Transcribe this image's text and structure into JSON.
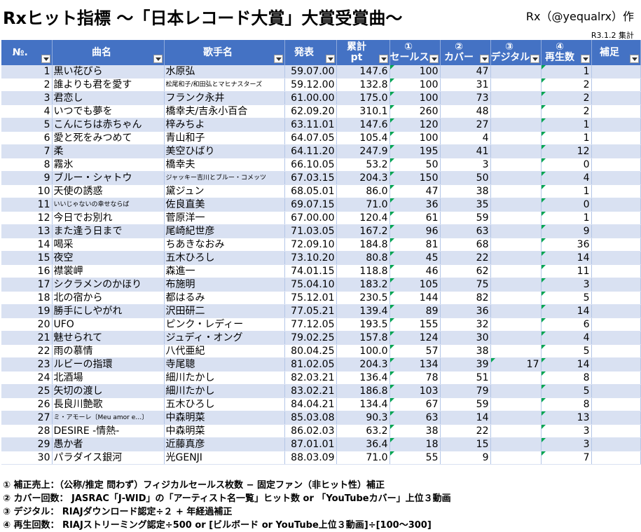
{
  "title": "Rxヒット指標 〜「日本レコード大賞」大賞受賞曲〜",
  "author": "Rx（@yequalrx）作",
  "date": "R3.1.2  集計",
  "headers": {
    "no": "№.",
    "song": "曲名",
    "artist": "歌手名",
    "release": "発表",
    "total_line1": "累計",
    "total_line2": "pt",
    "sales_line1": "①",
    "sales_line2": "セールス",
    "cover_line1": "②",
    "cover_line2": "カバー",
    "digital_line1": "③",
    "digital_line2": "デジタル",
    "plays_line1": "④",
    "plays_line2": "再生数",
    "note": "補足"
  },
  "rows": [
    {
      "no": "1",
      "song": "黒い花びら",
      "artist": "水原弘",
      "release": "59.07.00",
      "total": "147.6",
      "sales": "100",
      "cover": "47",
      "digital": "",
      "plays": "1"
    },
    {
      "no": "2",
      "song": "誰よりも君を愛す",
      "artist": "松尾和子/和田弘とマヒナスターズ",
      "release": "59.12.00",
      "total": "132.8",
      "sales": "100",
      "cover": "31",
      "digital": "",
      "plays": "2"
    },
    {
      "no": "3",
      "song": "君恋し",
      "artist": "フランク永井",
      "release": "61.00.00",
      "total": "175.0",
      "sales": "100",
      "cover": "73",
      "digital": "",
      "plays": "2"
    },
    {
      "no": "4",
      "song": "いつでも夢を",
      "artist": "橋幸夫/吉永小百合",
      "release": "62.09.20",
      "total": "310.1",
      "sales": "260",
      "cover": "48",
      "digital": "",
      "plays": "2"
    },
    {
      "no": "5",
      "song": "こんにちは赤ちゃん",
      "artist": "梓みちよ",
      "release": "63.11.01",
      "total": "147.6",
      "sales": "120",
      "cover": "27",
      "digital": "",
      "plays": "1"
    },
    {
      "no": "6",
      "song": "愛と死をみつめて",
      "artist": "青山和子",
      "release": "64.07.05",
      "total": "105.4",
      "sales": "100",
      "cover": "4",
      "digital": "",
      "plays": "1"
    },
    {
      "no": "7",
      "song": "柔",
      "artist": "美空ひばり",
      "release": "64.11.20",
      "total": "247.9",
      "sales": "195",
      "cover": "41",
      "digital": "",
      "plays": "12"
    },
    {
      "no": "8",
      "song": "霧氷",
      "artist": "橋幸夫",
      "release": "66.10.05",
      "total": "53.2",
      "sales": "50",
      "cover": "3",
      "digital": "",
      "plays": "0"
    },
    {
      "no": "9",
      "song": "ブルー・シャトウ",
      "artist": "ジャッキー吉川とブルー・コメッツ",
      "release": "67.03.15",
      "total": "204.3",
      "sales": "150",
      "cover": "50",
      "digital": "",
      "plays": "4"
    },
    {
      "no": "10",
      "song": "天使の誘惑",
      "artist": "黛ジュン",
      "release": "68.05.01",
      "total": "86.0",
      "sales": "47",
      "cover": "38",
      "digital": "",
      "plays": "1"
    },
    {
      "no": "11",
      "song": "いいじゃないの幸せならば",
      "artist": "佐良直美",
      "release": "69.07.15",
      "total": "71.0",
      "sales": "36",
      "cover": "35",
      "digital": "",
      "plays": "0"
    },
    {
      "no": "12",
      "song": "今日でお別れ",
      "artist": "菅原洋一",
      "release": "67.00.00",
      "total": "120.4",
      "sales": "61",
      "cover": "59",
      "digital": "",
      "plays": "1"
    },
    {
      "no": "13",
      "song": "また逢う日まで",
      "artist": "尾崎紀世彦",
      "release": "71.03.05",
      "total": "167.2",
      "sales": "96",
      "cover": "63",
      "digital": "",
      "plays": "9"
    },
    {
      "no": "14",
      "song": "喝采",
      "artist": "ちあきなおみ",
      "release": "72.09.10",
      "total": "184.8",
      "sales": "81",
      "cover": "68",
      "digital": "",
      "plays": "36"
    },
    {
      "no": "15",
      "song": "夜空",
      "artist": "五木ひろし",
      "release": "73.10.20",
      "total": "80.8",
      "sales": "45",
      "cover": "22",
      "digital": "",
      "plays": "14"
    },
    {
      "no": "16",
      "song": "襟裳岬",
      "artist": "森進一",
      "release": "74.01.15",
      "total": "118.8",
      "sales": "46",
      "cover": "62",
      "digital": "",
      "plays": "11"
    },
    {
      "no": "17",
      "song": "シクラメンのかほり",
      "artist": "布施明",
      "release": "75.04.10",
      "total": "183.2",
      "sales": "105",
      "cover": "75",
      "digital": "",
      "plays": "3"
    },
    {
      "no": "18",
      "song": "北の宿から",
      "artist": "都はるみ",
      "release": "75.12.01",
      "total": "230.5",
      "sales": "144",
      "cover": "82",
      "digital": "",
      "plays": "5"
    },
    {
      "no": "19",
      "song": "勝手にしやがれ",
      "artist": "沢田研二",
      "release": "77.05.21",
      "total": "139.4",
      "sales": "89",
      "cover": "36",
      "digital": "",
      "plays": "14"
    },
    {
      "no": "20",
      "song": "UFO",
      "artist": "ピンク・レディー",
      "release": "77.12.05",
      "total": "193.5",
      "sales": "155",
      "cover": "32",
      "digital": "",
      "plays": "6"
    },
    {
      "no": "21",
      "song": "魅せられて",
      "artist": "ジュディ・オング",
      "release": "79.02.25",
      "total": "157.8",
      "sales": "124",
      "cover": "30",
      "digital": "",
      "plays": "4"
    },
    {
      "no": "22",
      "song": "雨の慕情",
      "artist": "八代亜紀",
      "release": "80.04.25",
      "total": "100.0",
      "sales": "57",
      "cover": "38",
      "digital": "",
      "plays": "5"
    },
    {
      "no": "23",
      "song": "ルビーの指環",
      "artist": "寺尾聰",
      "release": "81.02.05",
      "total": "204.3",
      "sales": "134",
      "cover": "39",
      "digital": "17",
      "plays": "14"
    },
    {
      "no": "24",
      "song": "北酒場",
      "artist": "細川たかし",
      "release": "82.03.21",
      "total": "136.4",
      "sales": "78",
      "cover": "51",
      "digital": "",
      "plays": "8"
    },
    {
      "no": "25",
      "song": "矢切の渡し",
      "artist": "細川たかし",
      "release": "83.02.21",
      "total": "186.8",
      "sales": "103",
      "cover": "79",
      "digital": "",
      "plays": "5"
    },
    {
      "no": "26",
      "song": "長良川艶歌",
      "artist": "五木ひろし",
      "release": "84.04.21",
      "total": "134.4",
      "sales": "67",
      "cover": "59",
      "digital": "",
      "plays": "8"
    },
    {
      "no": "27",
      "song": "ミ・アモーレ〔Meu amor e…〕",
      "artist": "中森明菜",
      "release": "85.03.08",
      "total": "90.3",
      "sales": "63",
      "cover": "14",
      "digital": "",
      "plays": "13"
    },
    {
      "no": "28",
      "song": "DESIRE -情熱-",
      "artist": "中森明菜",
      "release": "86.02.03",
      "total": "63.2",
      "sales": "38",
      "cover": "22",
      "digital": "",
      "plays": "3"
    },
    {
      "no": "29",
      "song": "愚か者",
      "artist": "近藤真彦",
      "release": "87.01.01",
      "total": "36.4",
      "sales": "18",
      "cover": "15",
      "digital": "",
      "plays": "3"
    },
    {
      "no": "30",
      "song": "パラダイス銀河",
      "artist": "光GENJI",
      "release": "88.03.09",
      "total": "71.0",
      "sales": "55",
      "cover": "9",
      "digital": "",
      "plays": "7"
    }
  ],
  "notes": [
    "① 補正売上：（公称/推定 問わず）フィジカルセールス枚数 − 固定ファン（非ヒット性）補正",
    "② カバー回数： JASRAC「J-WID」の「アーティスト名一覧」ヒット数 or 「YouTubeカバー」上位３動画",
    "③ デジタル： RIAJダウンロード認定÷２ + 年経過補正",
    "④ 再生回数： RIAJストリーミング認定÷500 or [ビルボード or YouTube上位３動画]÷[100〜300]"
  ]
}
